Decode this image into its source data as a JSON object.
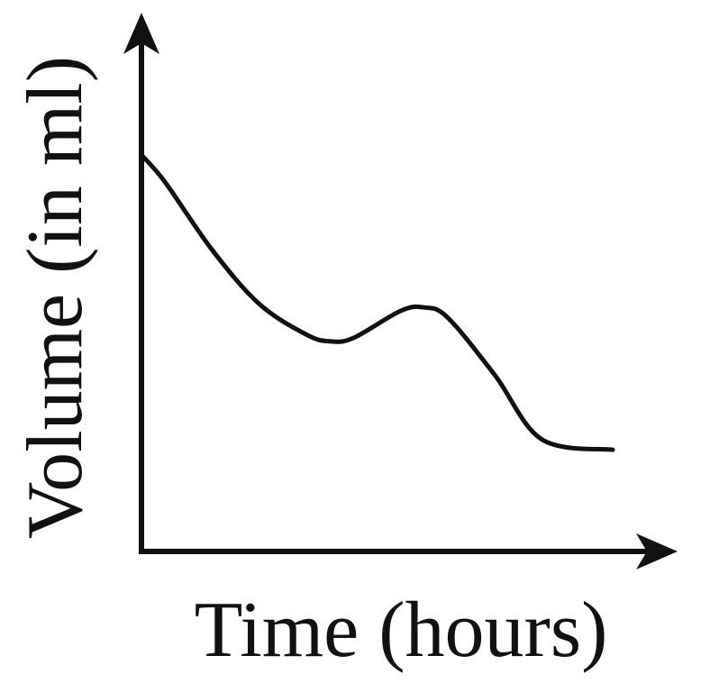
{
  "chart_data": {
    "type": "line",
    "title": "",
    "xlabel": "Time (hours)",
    "ylabel": "Volume (in ml)",
    "xlim": [
      0,
      100
    ],
    "ylim": [
      0,
      100
    ],
    "x_ticks": [],
    "y_ticks": [],
    "grid": false,
    "legend": "none",
    "note": "qualitative sketch without tick values; values are relative",
    "series": [
      {
        "x": [
          0,
          5,
          15,
          25,
          35,
          40,
          45,
          55,
          60,
          65,
          75,
          85,
          100
        ],
        "y": [
          100,
          92,
          72,
          56,
          47,
          45,
          46,
          54,
          55,
          52,
          35,
          16,
          13
        ]
      }
    ],
    "line_color": "#111111"
  }
}
